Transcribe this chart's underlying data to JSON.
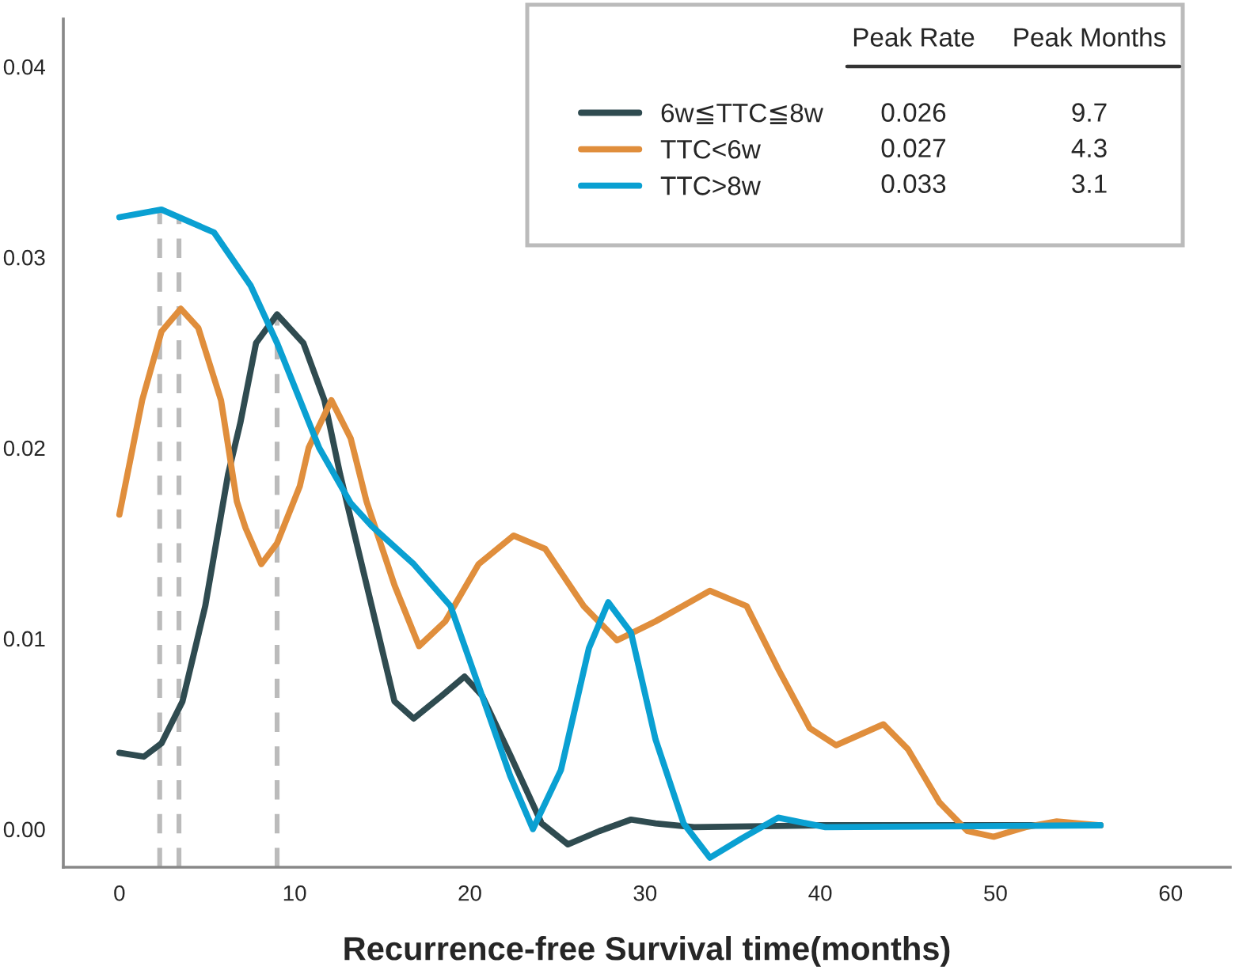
{
  "chart_data": {
    "type": "line",
    "xlabel": "Recurrence-free Survival time(months)",
    "xlim": [
      -3.2,
      63.4
    ],
    "ylim": [
      -0.002,
      0.0425
    ],
    "xticks": [
      0,
      10,
      20,
      30,
      40,
      50,
      60
    ],
    "yticks": [
      {
        "value": 0,
        "label": "0.00"
      },
      {
        "value": 0.01,
        "label": "0.01"
      },
      {
        "value": 0.02,
        "label": "0.02"
      },
      {
        "value": 0.03,
        "label": "0.03"
      },
      {
        "value": 0.04,
        "label": "0.04"
      }
    ],
    "grid": false,
    "legend": "top right",
    "marker": "none",
    "line_style": "solid",
    "series": [
      {
        "name": "6w≦TTC≦8w",
        "color": "#2f4b50",
        "x": [
          0,
          1.4,
          2.4,
          3.6,
          4.9,
          6.2,
          6.9,
          7.8,
          9.0,
          10.5,
          11.7,
          12.6,
          14.4,
          15.7,
          16.8,
          18.4,
          19.7,
          20.7,
          22.3,
          24.1,
          25.6,
          27.4,
          29.2,
          30.6,
          32.8,
          40,
          56
        ],
        "values": [
          0.004,
          0.0038,
          0.0045,
          0.0067,
          0.0117,
          0.0186,
          0.0213,
          0.0255,
          0.027,
          0.0255,
          0.0225,
          0.0186,
          0.0117,
          0.0067,
          0.0058,
          0.007,
          0.008,
          0.007,
          0.0039,
          0.0003,
          -0.0008,
          -0.0001,
          0.0005,
          0.0003,
          0.0001,
          0.0002,
          0.0002
        ]
      },
      {
        "name": "TTC<6w",
        "color": "#e08e3c",
        "x": [
          0,
          1.3,
          2.4,
          3.5,
          4.5,
          5.8,
          6.7,
          7.2,
          8.1,
          9.0,
          10.3,
          10.8,
          12.1,
          13.2,
          14.1,
          15.7,
          17.1,
          18.6,
          20.5,
          22.5,
          24.3,
          26.5,
          28.4,
          30.6,
          33.7,
          35.8,
          37.6,
          39.4,
          40.9,
          43.6,
          45.0,
          46.8,
          48.4,
          49.9,
          51.7,
          53.5,
          56.0
        ],
        "values": [
          0.0165,
          0.0225,
          0.0261,
          0.0273,
          0.0263,
          0.0225,
          0.0172,
          0.0158,
          0.0139,
          0.015,
          0.018,
          0.02,
          0.0225,
          0.0205,
          0.0172,
          0.0128,
          0.0096,
          0.0109,
          0.0139,
          0.0154,
          0.0147,
          0.0117,
          0.0099,
          0.0109,
          0.0125,
          0.0117,
          0.0084,
          0.0053,
          0.0044,
          0.0055,
          0.0042,
          0.0014,
          -0.0001,
          -0.0004,
          0.0001,
          0.0004,
          0.0002
        ]
      },
      {
        "name": "TTC>8w",
        "color": "#0aa0d2",
        "x": [
          0,
          2.4,
          5.4,
          7.5,
          9.0,
          11.4,
          13.2,
          14.4,
          16.8,
          18.9,
          20.7,
          22.3,
          23.6,
          25.2,
          26.8,
          27.9,
          29.2,
          30.6,
          32.2,
          33.7,
          35.5,
          37.6,
          40.3,
          56.0
        ],
        "values": [
          0.0321,
          0.0325,
          0.0313,
          0.0285,
          0.0255,
          0.02,
          0.0171,
          0.0159,
          0.0139,
          0.0117,
          0.007,
          0.0028,
          0.0,
          0.0031,
          0.0095,
          0.0119,
          0.0103,
          0.0047,
          0.0003,
          -0.0015,
          -0.0005,
          0.0006,
          0.0001,
          0.0002
        ]
      }
    ],
    "ref_lines": [
      {
        "axis": "x",
        "value": 2.3,
        "color": "#bbbbbb",
        "line_style": "dashed"
      },
      {
        "axis": "x",
        "value": 3.4,
        "color": "#bbbbbb",
        "line_style": "dashed"
      },
      {
        "axis": "x",
        "value": 9.0,
        "color": "#bbbbbb",
        "line_style": "dashed"
      }
    ],
    "annotations": [
      "Peak Rate",
      "Peak Months",
      "0.026",
      "9.7",
      "0.027",
      "4.3",
      "0.033",
      "3.1"
    ]
  }
}
